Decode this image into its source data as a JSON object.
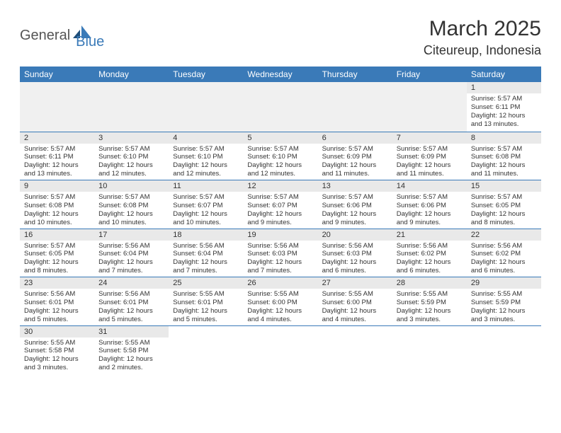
{
  "brand": {
    "part1": "General",
    "part2": "Blue"
  },
  "title": "March 2025",
  "location": "Citeureup, Indonesia",
  "colors": {
    "header_bg": "#3a7ab8",
    "header_text": "#ffffff",
    "daynum_bg": "#e9e9e9",
    "empty_bg": "#f0f0f0",
    "row_border": "#3a7ab8",
    "logo_blue": "#3a7ab8",
    "text": "#333333"
  },
  "weekdays": [
    "Sunday",
    "Monday",
    "Tuesday",
    "Wednesday",
    "Thursday",
    "Friday",
    "Saturday"
  ],
  "weeks": [
    [
      null,
      null,
      null,
      null,
      null,
      null,
      {
        "n": "1",
        "sunrise": "Sunrise: 5:57 AM",
        "sunset": "Sunset: 6:11 PM",
        "day1": "Daylight: 12 hours",
        "day2": "and 13 minutes."
      }
    ],
    [
      {
        "n": "2",
        "sunrise": "Sunrise: 5:57 AM",
        "sunset": "Sunset: 6:11 PM",
        "day1": "Daylight: 12 hours",
        "day2": "and 13 minutes."
      },
      {
        "n": "3",
        "sunrise": "Sunrise: 5:57 AM",
        "sunset": "Sunset: 6:10 PM",
        "day1": "Daylight: 12 hours",
        "day2": "and 12 minutes."
      },
      {
        "n": "4",
        "sunrise": "Sunrise: 5:57 AM",
        "sunset": "Sunset: 6:10 PM",
        "day1": "Daylight: 12 hours",
        "day2": "and 12 minutes."
      },
      {
        "n": "5",
        "sunrise": "Sunrise: 5:57 AM",
        "sunset": "Sunset: 6:10 PM",
        "day1": "Daylight: 12 hours",
        "day2": "and 12 minutes."
      },
      {
        "n": "6",
        "sunrise": "Sunrise: 5:57 AM",
        "sunset": "Sunset: 6:09 PM",
        "day1": "Daylight: 12 hours",
        "day2": "and 11 minutes."
      },
      {
        "n": "7",
        "sunrise": "Sunrise: 5:57 AM",
        "sunset": "Sunset: 6:09 PM",
        "day1": "Daylight: 12 hours",
        "day2": "and 11 minutes."
      },
      {
        "n": "8",
        "sunrise": "Sunrise: 5:57 AM",
        "sunset": "Sunset: 6:08 PM",
        "day1": "Daylight: 12 hours",
        "day2": "and 11 minutes."
      }
    ],
    [
      {
        "n": "9",
        "sunrise": "Sunrise: 5:57 AM",
        "sunset": "Sunset: 6:08 PM",
        "day1": "Daylight: 12 hours",
        "day2": "and 10 minutes."
      },
      {
        "n": "10",
        "sunrise": "Sunrise: 5:57 AM",
        "sunset": "Sunset: 6:08 PM",
        "day1": "Daylight: 12 hours",
        "day2": "and 10 minutes."
      },
      {
        "n": "11",
        "sunrise": "Sunrise: 5:57 AM",
        "sunset": "Sunset: 6:07 PM",
        "day1": "Daylight: 12 hours",
        "day2": "and 10 minutes."
      },
      {
        "n": "12",
        "sunrise": "Sunrise: 5:57 AM",
        "sunset": "Sunset: 6:07 PM",
        "day1": "Daylight: 12 hours",
        "day2": "and 9 minutes."
      },
      {
        "n": "13",
        "sunrise": "Sunrise: 5:57 AM",
        "sunset": "Sunset: 6:06 PM",
        "day1": "Daylight: 12 hours",
        "day2": "and 9 minutes."
      },
      {
        "n": "14",
        "sunrise": "Sunrise: 5:57 AM",
        "sunset": "Sunset: 6:06 PM",
        "day1": "Daylight: 12 hours",
        "day2": "and 9 minutes."
      },
      {
        "n": "15",
        "sunrise": "Sunrise: 5:57 AM",
        "sunset": "Sunset: 6:05 PM",
        "day1": "Daylight: 12 hours",
        "day2": "and 8 minutes."
      }
    ],
    [
      {
        "n": "16",
        "sunrise": "Sunrise: 5:57 AM",
        "sunset": "Sunset: 6:05 PM",
        "day1": "Daylight: 12 hours",
        "day2": "and 8 minutes."
      },
      {
        "n": "17",
        "sunrise": "Sunrise: 5:56 AM",
        "sunset": "Sunset: 6:04 PM",
        "day1": "Daylight: 12 hours",
        "day2": "and 7 minutes."
      },
      {
        "n": "18",
        "sunrise": "Sunrise: 5:56 AM",
        "sunset": "Sunset: 6:04 PM",
        "day1": "Daylight: 12 hours",
        "day2": "and 7 minutes."
      },
      {
        "n": "19",
        "sunrise": "Sunrise: 5:56 AM",
        "sunset": "Sunset: 6:03 PM",
        "day1": "Daylight: 12 hours",
        "day2": "and 7 minutes."
      },
      {
        "n": "20",
        "sunrise": "Sunrise: 5:56 AM",
        "sunset": "Sunset: 6:03 PM",
        "day1": "Daylight: 12 hours",
        "day2": "and 6 minutes."
      },
      {
        "n": "21",
        "sunrise": "Sunrise: 5:56 AM",
        "sunset": "Sunset: 6:02 PM",
        "day1": "Daylight: 12 hours",
        "day2": "and 6 minutes."
      },
      {
        "n": "22",
        "sunrise": "Sunrise: 5:56 AM",
        "sunset": "Sunset: 6:02 PM",
        "day1": "Daylight: 12 hours",
        "day2": "and 6 minutes."
      }
    ],
    [
      {
        "n": "23",
        "sunrise": "Sunrise: 5:56 AM",
        "sunset": "Sunset: 6:01 PM",
        "day1": "Daylight: 12 hours",
        "day2": "and 5 minutes."
      },
      {
        "n": "24",
        "sunrise": "Sunrise: 5:56 AM",
        "sunset": "Sunset: 6:01 PM",
        "day1": "Daylight: 12 hours",
        "day2": "and 5 minutes."
      },
      {
        "n": "25",
        "sunrise": "Sunrise: 5:55 AM",
        "sunset": "Sunset: 6:01 PM",
        "day1": "Daylight: 12 hours",
        "day2": "and 5 minutes."
      },
      {
        "n": "26",
        "sunrise": "Sunrise: 5:55 AM",
        "sunset": "Sunset: 6:00 PM",
        "day1": "Daylight: 12 hours",
        "day2": "and 4 minutes."
      },
      {
        "n": "27",
        "sunrise": "Sunrise: 5:55 AM",
        "sunset": "Sunset: 6:00 PM",
        "day1": "Daylight: 12 hours",
        "day2": "and 4 minutes."
      },
      {
        "n": "28",
        "sunrise": "Sunrise: 5:55 AM",
        "sunset": "Sunset: 5:59 PM",
        "day1": "Daylight: 12 hours",
        "day2": "and 3 minutes."
      },
      {
        "n": "29",
        "sunrise": "Sunrise: 5:55 AM",
        "sunset": "Sunset: 5:59 PM",
        "day1": "Daylight: 12 hours",
        "day2": "and 3 minutes."
      }
    ],
    [
      {
        "n": "30",
        "sunrise": "Sunrise: 5:55 AM",
        "sunset": "Sunset: 5:58 PM",
        "day1": "Daylight: 12 hours",
        "day2": "and 3 minutes."
      },
      {
        "n": "31",
        "sunrise": "Sunrise: 5:55 AM",
        "sunset": "Sunset: 5:58 PM",
        "day1": "Daylight: 12 hours",
        "day2": "and 2 minutes."
      },
      null,
      null,
      null,
      null,
      null
    ]
  ]
}
